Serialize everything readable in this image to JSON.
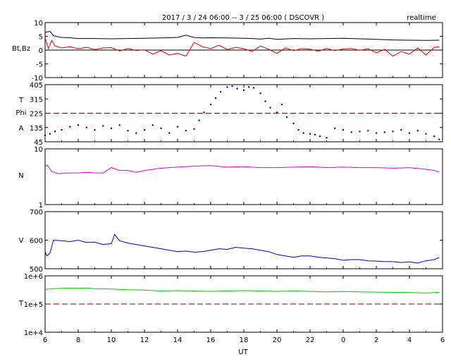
{
  "header": {
    "title": "2017 / 3 / 24   06:00 -- 3 / 25  06:00 ( DSCOVR )",
    "mode": "realtime"
  },
  "colors": {
    "bt": "#000000",
    "bz": "#e00000",
    "phi": "#0000cc",
    "density": "#e000e0",
    "speed": "#0000bb",
    "temperature": "#00cc00",
    "reference_line": "#800000"
  },
  "chart_data": [
    {
      "type": "line",
      "panel": "magnetic-field",
      "ylabel": "Bt,Bz",
      "ylim": [
        -10,
        10
      ],
      "yticks": [
        "10",
        "5",
        "0",
        "-5",
        "-10"
      ],
      "reference_lines": [
        0
      ],
      "series": [
        {
          "name": "Bt",
          "x": [
            6.0,
            6.3,
            6.5,
            7,
            7.5,
            8,
            9,
            10,
            11,
            12,
            13,
            14,
            14.5,
            15,
            15.5,
            16,
            17,
            18,
            18.5,
            19,
            19.5,
            20,
            21,
            22,
            23,
            24,
            25,
            26,
            27,
            28,
            29,
            29.8
          ],
          "y": [
            6.5,
            6.8,
            5.2,
            4.6,
            4.5,
            4.2,
            4.2,
            4.1,
            4.2,
            4.3,
            4.4,
            4.6,
            5.4,
            4.6,
            4.4,
            4.5,
            4.4,
            4.3,
            4.2,
            4.0,
            4.3,
            3.9,
            4.2,
            4.1,
            4.2,
            4.3,
            4.1,
            3.9,
            3.7,
            3.6,
            3.5,
            3.6
          ]
        },
        {
          "name": "Bz",
          "x": [
            6.0,
            6.2,
            6.4,
            6.6,
            7,
            7.5,
            8,
            8.5,
            9,
            9.5,
            10,
            10.5,
            11,
            11.5,
            12,
            12.5,
            13,
            13.5,
            14,
            14.5,
            15,
            15.5,
            16,
            16.5,
            17,
            17.5,
            18,
            18.5,
            19,
            19.5,
            20,
            20.5,
            21,
            21.5,
            22,
            22.5,
            23,
            23.5,
            24,
            24.5,
            25,
            25.5,
            26,
            26.5,
            27,
            27.5,
            28,
            28.5,
            29,
            29.5,
            29.8
          ],
          "y": [
            4.5,
            0.5,
            3.5,
            1.5,
            0.8,
            1.2,
            0.5,
            1.0,
            0.2,
            0.8,
            0.9,
            -0.3,
            0.6,
            -0.2,
            0.1,
            -1.5,
            -0.2,
            -1.8,
            -1.2,
            -2.2,
            2.8,
            1.2,
            0.5,
            1.8,
            0.2,
            1.0,
            0.5,
            -0.5,
            1.5,
            0.3,
            -1.2,
            0.8,
            -0.2,
            0.6,
            0.3,
            -0.4,
            0.6,
            -0.2,
            0.4,
            0.6,
            -0.1,
            0.5,
            -1.0,
            0.3,
            -2.2,
            -0.5,
            -1.5,
            0.8,
            -1.8,
            1.0,
            1.2
          ]
        }
      ]
    },
    {
      "type": "scatter",
      "panel": "phi-angle",
      "ylabel": "T\nPhi\nA",
      "ylim": [
        45,
        405
      ],
      "yticks": [
        "405",
        "315",
        "225",
        "135",
        "45"
      ],
      "reference_lines": [
        225
      ],
      "series": [
        {
          "name": "Phi",
          "x": [
            6.0,
            6.3,
            6.6,
            7,
            7.5,
            8,
            8.5,
            9,
            9.5,
            10,
            10.5,
            11,
            11.5,
            12,
            12.5,
            13,
            13.5,
            14,
            14.5,
            15,
            15.3,
            15.6,
            16,
            16.3,
            16.6,
            17,
            17.3,
            17.6,
            18,
            18.3,
            18.6,
            19,
            19.3,
            19.6,
            20,
            20.3,
            20.6,
            21,
            21.3,
            21.6,
            22,
            22.3,
            22.6,
            23,
            23.5,
            24,
            24.5,
            25,
            25.5,
            26,
            26.5,
            27,
            27.5,
            28,
            28.5,
            29,
            29.5,
            29.8
          ],
          "y": [
            85,
            95,
            110,
            120,
            140,
            150,
            135,
            120,
            145,
            130,
            150,
            115,
            100,
            120,
            150,
            130,
            100,
            140,
            115,
            125,
            180,
            230,
            280,
            320,
            360,
            390,
            395,
            380,
            370,
            390,
            385,
            350,
            300,
            260,
            230,
            280,
            200,
            160,
            120,
            100,
            95,
            90,
            80,
            70,
            130,
            120,
            105,
            110,
            115,
            100,
            105,
            110,
            120,
            100,
            115,
            95,
            80,
            60
          ]
        }
      ]
    },
    {
      "type": "line",
      "panel": "density",
      "ylabel": "N",
      "ylim": [
        1,
        10
      ],
      "yscale": "log",
      "yticks": [
        "10",
        "1"
      ],
      "series": [
        {
          "name": "N",
          "x": [
            6.0,
            6.2,
            6.4,
            6.8,
            7.5,
            8,
            8.5,
            9,
            9.5,
            10,
            10.5,
            11,
            11.5,
            12,
            12.5,
            13,
            14,
            15,
            16,
            17,
            18,
            19,
            20,
            21,
            22,
            23,
            24,
            25,
            26,
            27,
            28,
            29,
            29.5,
            29.8
          ],
          "y": [
            5.2,
            4.8,
            3.9,
            3.6,
            3.7,
            3.7,
            3.8,
            3.7,
            3.7,
            4.6,
            4.1,
            4.1,
            3.8,
            4.1,
            4.3,
            4.5,
            4.7,
            4.9,
            5.0,
            4.7,
            4.8,
            4.6,
            4.6,
            4.7,
            4.8,
            4.6,
            4.7,
            4.6,
            4.6,
            4.5,
            4.6,
            4.3,
            4.1,
            3.8
          ]
        }
      ]
    },
    {
      "type": "line",
      "panel": "speed",
      "ylabel": "V",
      "ylim": [
        500,
        700
      ],
      "yticks": [
        "700",
        "600",
        "500"
      ],
      "series": [
        {
          "name": "V",
          "x": [
            6.0,
            6.1,
            6.3,
            6.5,
            7,
            7.5,
            8,
            8.5,
            9,
            9.5,
            10,
            10.2,
            10.5,
            11,
            11.5,
            12,
            12.5,
            13,
            13.5,
            14,
            14.5,
            15,
            15.5,
            16,
            16.5,
            17,
            17.5,
            18,
            18.5,
            19,
            19.5,
            20,
            20.5,
            21,
            21.5,
            22,
            22.5,
            23,
            23.5,
            24,
            24.5,
            25,
            25.5,
            26,
            26.5,
            27,
            27.5,
            28,
            28.5,
            29,
            29.5,
            29.8
          ],
          "y": [
            560,
            545,
            555,
            600,
            598,
            595,
            600,
            592,
            593,
            585,
            588,
            620,
            598,
            590,
            585,
            580,
            575,
            570,
            565,
            560,
            562,
            558,
            560,
            565,
            570,
            568,
            575,
            572,
            570,
            565,
            560,
            550,
            545,
            540,
            545,
            545,
            540,
            538,
            535,
            530,
            532,
            532,
            528,
            527,
            525,
            525,
            522,
            524,
            520,
            528,
            532,
            540
          ]
        }
      ]
    },
    {
      "type": "line",
      "panel": "temperature",
      "ylabel": "T",
      "ylim": [
        10000,
        1000000
      ],
      "yscale": "log",
      "yticks": [
        "1e+6",
        "1e+5",
        "1e+4"
      ],
      "reference_lines": [
        100000
      ],
      "series": [
        {
          "name": "T",
          "x": [
            6.0,
            6.5,
            7,
            7.5,
            8,
            8.5,
            9,
            10,
            11,
            12,
            13,
            14,
            15,
            16,
            17,
            18,
            19,
            20,
            21,
            22,
            23,
            24,
            25,
            26,
            27,
            28,
            29,
            29.8
          ],
          "y": [
            330000,
            350000,
            360000,
            370000,
            360000,
            370000,
            350000,
            340000,
            320000,
            310000,
            290000,
            300000,
            290000,
            280000,
            290000,
            300000,
            290000,
            280000,
            290000,
            280000,
            270000,
            280000,
            270000,
            265000,
            260000,
            255000,
            245000,
            260000
          ]
        }
      ]
    }
  ],
  "x_axis": {
    "label": "UT",
    "xlim": [
      6,
      30
    ],
    "ticks": [
      "6",
      "8",
      "10",
      "12",
      "14",
      "16",
      "18",
      "20",
      "22",
      "0",
      "2",
      "4",
      "6"
    ]
  }
}
